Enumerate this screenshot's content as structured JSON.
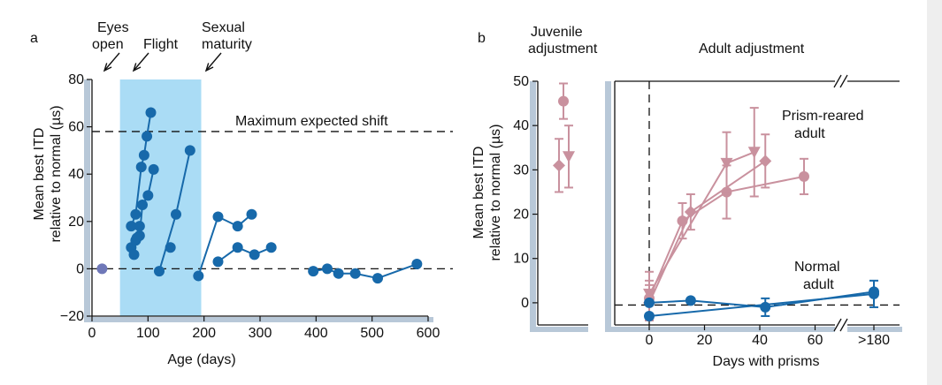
{
  "panel_a": {
    "letter": "a",
    "annotations": {
      "eyes_open_1": "Eyes",
      "eyes_open_2": "open",
      "flight": "Flight",
      "sexual_1": "Sexual",
      "sexual_2": "maturity",
      "max_shift": "Maximum expected shift"
    }
  },
  "panel_b": {
    "letter": "b",
    "juvenile_1": "Juvenile",
    "juvenile_2": "adjustment",
    "adult": "Adult adjustment",
    "prism_1": "Prism-reared",
    "prism_2": "adult",
    "normal_1": "Normal",
    "normal_2": "adult"
  },
  "colors": {
    "blue": "#1769aa",
    "pink": "#c9919e",
    "shade": "#aadcf5",
    "axis_shadow": "#b8c8d8"
  },
  "chart_data": [
    {
      "type": "line",
      "xlabel": "Age (days)",
      "ylabel_1": "Mean best ITD",
      "ylabel_2": "relative to normal (µs)",
      "xlim": [
        -5,
        600
      ],
      "ylim": [
        -20,
        80
      ],
      "xticks": [
        "0",
        "100",
        "200",
        "300",
        "400",
        "500",
        "600"
      ],
      "yticks": [
        "−20",
        "0",
        "20",
        "40",
        "60",
        "80"
      ],
      "shaded_region": [
        50,
        195
      ],
      "reference_lines": [
        0,
        58
      ],
      "series": [
        {
          "points": [
            [
              18,
              0
            ]
          ],
          "color": "purple"
        },
        {
          "points": [
            [
              70,
              18
            ],
            [
              78,
              23
            ],
            [
              88,
              43
            ],
            [
              93,
              48
            ],
            [
              98,
              56
            ],
            [
              105,
              66
            ]
          ]
        },
        {
          "points": [
            [
              70,
              9
            ],
            [
              75,
              6
            ],
            [
              78,
              12
            ],
            [
              85,
              14
            ],
            [
              90,
              27
            ],
            [
              100,
              31
            ],
            [
              110,
              42
            ]
          ]
        },
        {
          "points": [
            [
              80,
              13
            ],
            [
              85,
              18
            ]
          ]
        },
        {
          "points": [
            [
              120,
              -1
            ],
            [
              150,
              23
            ],
            [
              175,
              50
            ]
          ]
        },
        {
          "points": [
            [
              140,
              9
            ]
          ]
        },
        {
          "points": [
            [
              190,
              -3
            ],
            [
              225,
              22
            ],
            [
              260,
              18
            ],
            [
              285,
              23
            ]
          ]
        },
        {
          "points": [
            [
              225,
              3
            ],
            [
              260,
              9
            ],
            [
              290,
              6
            ],
            [
              320,
              9
            ]
          ]
        },
        {
          "points": [
            [
              395,
              -1
            ],
            [
              420,
              0
            ],
            [
              440,
              -2
            ],
            [
              470,
              -2
            ],
            [
              510,
              -4
            ],
            [
              580,
              2
            ]
          ]
        }
      ]
    },
    {
      "type": "scatter",
      "xlabel": "Days with prisms",
      "ylabel_1": "Mean best ITD",
      "ylabel_2": "relative to normal (µs)",
      "ylim": [
        -5,
        50
      ],
      "yticks": [
        "0",
        "10",
        "20",
        "30",
        "40",
        "50"
      ],
      "xticks": [
        "0",
        "20",
        "40",
        "60",
        ">180"
      ],
      "juvenile": [
        {
          "marker": "diamond",
          "y": 31,
          "err": 6
        },
        {
          "marker": "circle",
          "y": 45.5,
          "err": 4
        },
        {
          "marker": "triangle",
          "y": 33,
          "err": 7
        }
      ],
      "series": [
        {
          "name": "prism",
          "marker": "diamond",
          "points": [
            [
              0,
              0
            ],
            [
              15,
              20.5
            ],
            [
              42,
              32
            ]
          ],
          "err": [
            4,
            4,
            6
          ]
        },
        {
          "name": "prism",
          "marker": "circle",
          "points": [
            [
              0,
              1
            ],
            [
              12,
              18.5
            ],
            [
              28,
              25
            ],
            [
              56,
              28.5
            ]
          ],
          "err": [
            4,
            4,
            6,
            4
          ]
        },
        {
          "name": "prism",
          "marker": "triangle",
          "points": [
            [
              0,
              2
            ],
            [
              28,
              31.5
            ],
            [
              38,
              34
            ]
          ],
          "err": [
            5,
            7,
            10
          ]
        },
        {
          "name": "normal",
          "marker": "circle",
          "points": [
            [
              0,
              -3
            ],
            [
              ">180",
              2
            ]
          ],
          "err": [
            0,
            3
          ]
        },
        {
          "name": "normal",
          "marker": "circle",
          "points": [
            [
              0,
              0
            ],
            [
              15,
              0.5
            ],
            [
              42,
              -1
            ],
            [
              ">180",
              2.5
            ]
          ],
          "err": [
            0,
            0,
            2,
            0
          ]
        }
      ]
    }
  ]
}
